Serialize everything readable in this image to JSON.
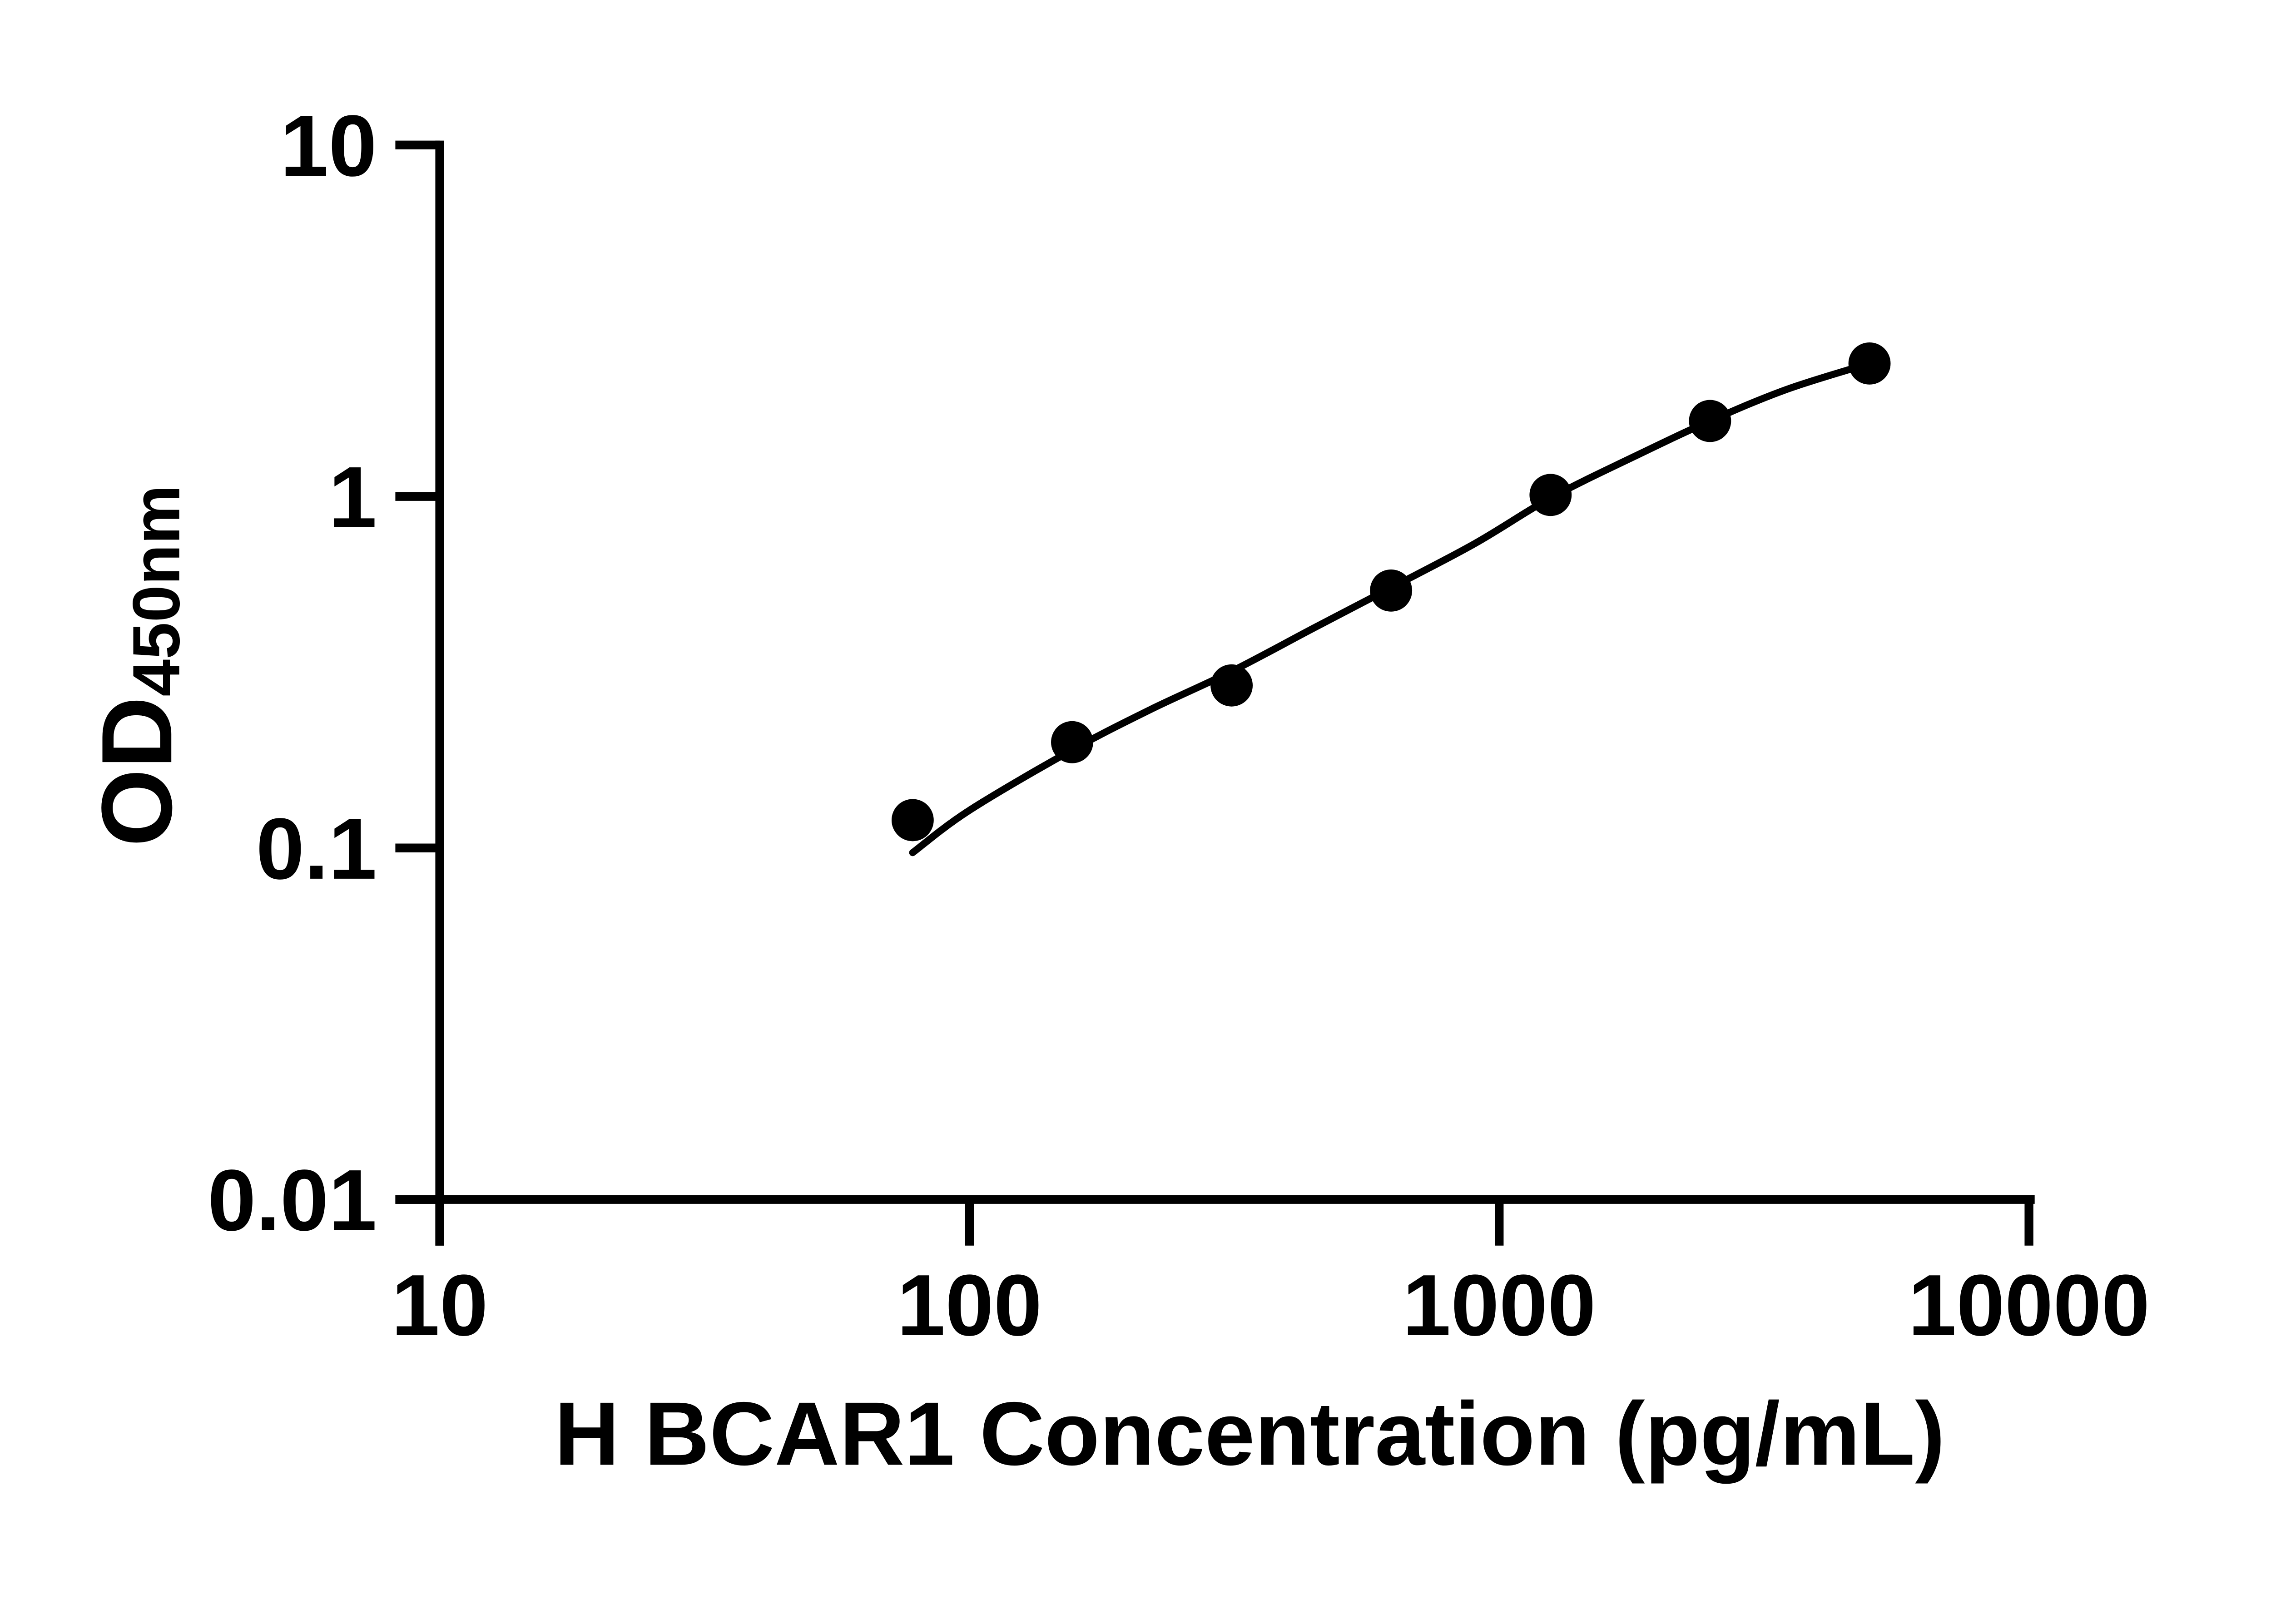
{
  "colors": {
    "foreground": "#000000",
    "background": "#ffffff"
  },
  "chart_data": {
    "type": "scatter",
    "subtype": "ELISA standard curve with fitted line",
    "title": "",
    "xlabel": "H BCAR1 Concentration (pg/mL)",
    "ylabel": "OD",
    "ylabel_subscript": "450nm",
    "x_scale": "log10",
    "y_scale": "log10",
    "xlim": [
      10,
      10000
    ],
    "ylim": [
      0.01,
      10
    ],
    "x_ticks": [
      10,
      100,
      1000,
      10000
    ],
    "x_tick_labels": [
      "10",
      "100",
      "1000",
      "10000"
    ],
    "y_ticks": [
      10,
      1,
      0.1,
      0.01
    ],
    "y_tick_labels": [
      "10",
      "1",
      "0.1",
      "0.01"
    ],
    "grid": false,
    "legend": null,
    "marker": {
      "shape": "filled-circle",
      "color": "#000000"
    },
    "series": [
      {
        "name": "standard-curve-points",
        "points": [
          {
            "x": 78.125,
            "y": 0.12
          },
          {
            "x": 156.25,
            "y": 0.2
          },
          {
            "x": 312.5,
            "y": 0.29
          },
          {
            "x": 625,
            "y": 0.54
          },
          {
            "x": 1250,
            "y": 1.01
          },
          {
            "x": 2500,
            "y": 1.64
          },
          {
            "x": 5000,
            "y": 2.39
          }
        ]
      }
    ],
    "fit_curve": {
      "name": "four-parameter-logistic-fit",
      "samples": [
        [
          78.125,
          0.097
        ],
        [
          100,
          0.128
        ],
        [
          156.25,
          0.19
        ],
        [
          220,
          0.248
        ],
        [
          312.5,
          0.318
        ],
        [
          450,
          0.425
        ],
        [
          625,
          0.55
        ],
        [
          900,
          0.735
        ],
        [
          1250,
          0.99
        ],
        [
          1800,
          1.3
        ],
        [
          2500,
          1.64
        ],
        [
          3500,
          2.02
        ],
        [
          5000,
          2.39
        ]
      ]
    }
  }
}
